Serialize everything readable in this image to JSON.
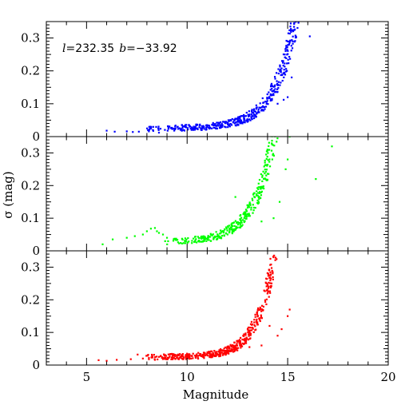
{
  "chart_data": {
    "type": "scatter",
    "layout": "three vertically stacked panels sharing the x axis",
    "xlabel": "Magnitude",
    "ylabel": "σ (mag)",
    "xlim": [
      3,
      20
    ],
    "x_ticks": [
      5,
      10,
      15,
      20
    ],
    "annotation": {
      "l_label": "l",
      "l_value": "=232.35",
      "b_label": "b",
      "b_value": "=−33.92"
    },
    "panels": [
      {
        "color": "#0000ff",
        "ylim": [
          0,
          0.35
        ],
        "y_ticks": [
          0,
          0.1,
          0.2,
          0.3
        ],
        "y_tick_labels": [
          "0",
          "0.1",
          "0.2",
          "0.3"
        ],
        "trend": {
          "floor": 0.025,
          "amp": 0.0003,
          "rate": 0.95,
          "x_start": 8.0,
          "x_end": 17.3
        },
        "outliers": [
          [
            6.0,
            0.018
          ],
          [
            6.4,
            0.015
          ],
          [
            7.0,
            0.016
          ],
          [
            7.3,
            0.014
          ],
          [
            7.6,
            0.015
          ],
          [
            8.1,
            0.016
          ],
          [
            8.3,
            0.02
          ],
          [
            8.6,
            0.012
          ],
          [
            9.1,
            0.03
          ],
          [
            9.4,
            0.022
          ],
          [
            10.1,
            0.035
          ],
          [
            12.1,
            0.036
          ],
          [
            13.0,
            0.045
          ],
          [
            14.2,
            0.155
          ],
          [
            14.5,
            0.1
          ],
          [
            14.8,
            0.112
          ],
          [
            15.0,
            0.12
          ],
          [
            15.2,
            0.18
          ],
          [
            16.1,
            0.305
          ]
        ]
      },
      {
        "color": "#00ff00",
        "ylim": [
          0,
          0.35
        ],
        "y_ticks": [
          0,
          0.1,
          0.2,
          0.3
        ],
        "y_tick_labels": [
          "0",
          "0.1",
          "0.2",
          "0.3"
        ],
        "trend": {
          "floor": 0.027,
          "amp": 0.0006,
          "rate": 1.0,
          "x_start": 8.8,
          "x_end": 17.0
        },
        "outliers": [
          [
            5.8,
            0.02
          ],
          [
            6.3,
            0.035
          ],
          [
            7.0,
            0.04
          ],
          [
            7.4,
            0.045
          ],
          [
            7.8,
            0.05
          ],
          [
            8.0,
            0.06
          ],
          [
            8.2,
            0.068
          ],
          [
            8.4,
            0.07
          ],
          [
            8.5,
            0.06
          ],
          [
            8.6,
            0.055
          ],
          [
            8.8,
            0.05
          ],
          [
            9.0,
            0.04
          ],
          [
            12.4,
            0.165
          ],
          [
            13.7,
            0.09
          ],
          [
            14.3,
            0.1
          ],
          [
            14.6,
            0.15
          ],
          [
            14.9,
            0.25
          ],
          [
            15.0,
            0.28
          ],
          [
            15.1,
            0.35
          ],
          [
            16.4,
            0.22
          ],
          [
            17.2,
            0.32
          ]
        ]
      },
      {
        "color": "#ff0000",
        "ylim": [
          0,
          0.35
        ],
        "y_ticks": [
          0,
          0.1,
          0.2,
          0.3
        ],
        "y_tick_labels": [
          "0",
          "0.1",
          "0.2",
          "0.3"
        ],
        "trend": {
          "floor": 0.025,
          "amp": 0.00018,
          "rate": 1.18,
          "x_start": 7.5,
          "x_end": 16.1
        },
        "outliers": [
          [
            5.6,
            0.015
          ],
          [
            6.0,
            0.013
          ],
          [
            6.5,
            0.016
          ],
          [
            7.2,
            0.018
          ],
          [
            7.8,
            0.02
          ],
          [
            8.1,
            0.022
          ],
          [
            8.4,
            0.016
          ],
          [
            12.5,
            0.045
          ],
          [
            13.1,
            0.055
          ],
          [
            13.7,
            0.06
          ],
          [
            14.1,
            0.12
          ],
          [
            14.5,
            0.09
          ],
          [
            14.7,
            0.11
          ],
          [
            15.0,
            0.15
          ],
          [
            15.1,
            0.17
          ]
        ]
      }
    ]
  }
}
